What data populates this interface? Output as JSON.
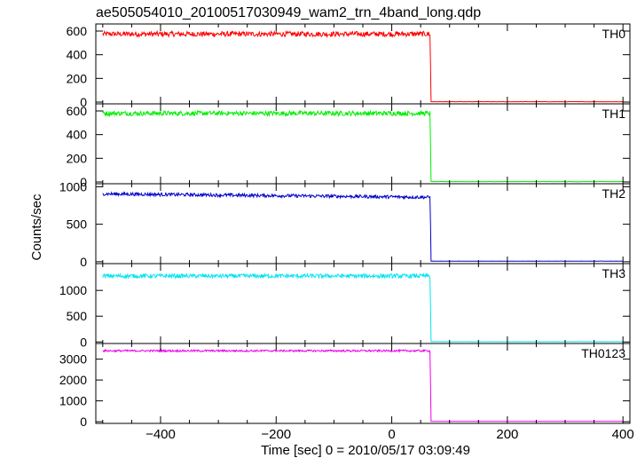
{
  "chart_data": {
    "type": "line",
    "title": "ae505054010_20100517030949_wam2_trn_4band_long.qdp",
    "xlabel": "Time [sec] 0 = 2010/05/17 03:09:49",
    "ylabel": "Counts/sec",
    "xlim": [
      -512,
      412
    ],
    "x_ticks": [
      -400,
      -200,
      0,
      200,
      400
    ],
    "drop_time": 67,
    "x_start": -500,
    "x_end": 400,
    "panels": [
      {
        "name": "TH0",
        "color": "#ff0000",
        "ylim": [
          -15,
          660
        ],
        "yticks": [
          0,
          200,
          400,
          600
        ],
        "level_before": 575,
        "noise": 22,
        "level_after": 3
      },
      {
        "name": "TH1",
        "color": "#00ee00",
        "ylim": [
          -15,
          660
        ],
        "yticks": [
          0,
          200,
          400,
          600
        ],
        "level_before": 580,
        "noise": 20,
        "level_after": 3
      },
      {
        "name": "TH2",
        "color": "#0000cc",
        "ylim": [
          -25,
          1040
        ],
        "yticks": [
          0,
          500,
          1000
        ],
        "level_before": 905,
        "level_before_end": 860,
        "noise": 22,
        "level_after": 8
      },
      {
        "name": "TH3",
        "color": "#00e5ee",
        "ylim": [
          -30,
          1520
        ],
        "yticks": [
          0,
          500,
          1000
        ],
        "level_before": 1280,
        "noise": 40,
        "level_after": 5
      },
      {
        "name": "TH0123",
        "color": "#ee00ee",
        "ylim": [
          -80,
          3750
        ],
        "yticks": [
          0,
          1000,
          2000,
          3000
        ],
        "level_before": 3400,
        "noise": 45,
        "level_after": 15
      }
    ]
  }
}
